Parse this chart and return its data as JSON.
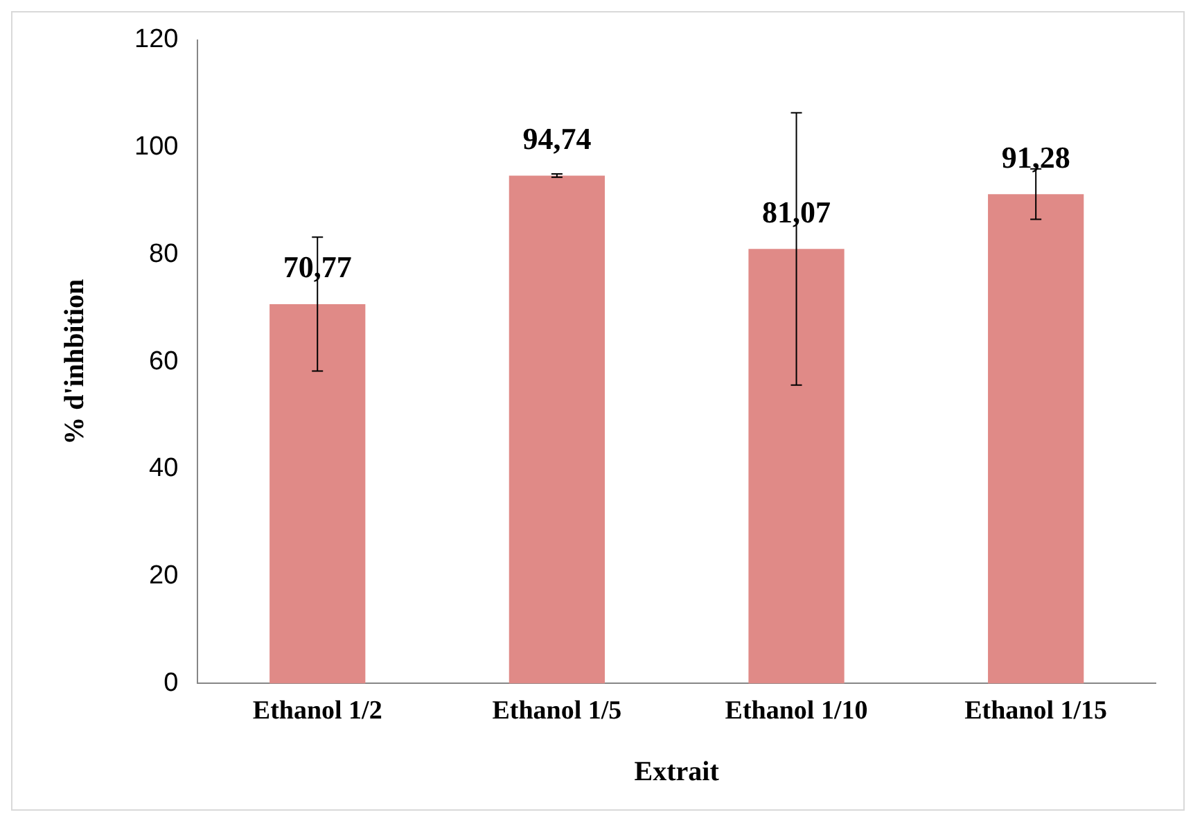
{
  "chart_data": {
    "type": "bar",
    "xlabel": "Extrait",
    "ylabel": "% d'inhbition",
    "categories": [
      "Ethanol 1/2",
      "Ethanol 1/5",
      "Ethanol 1/10",
      "Ethanol 1/15"
    ],
    "values": [
      70.77,
      94.74,
      81.07,
      91.28
    ],
    "value_labels": [
      "70,77",
      "94,74",
      "81,07",
      "91,28"
    ],
    "errors": [
      12.5,
      0.3,
      25.4,
      4.7
    ],
    "color": "#e08a87",
    "ylim": [
      0,
      120
    ],
    "yticks": [
      0,
      20,
      40,
      60,
      80,
      100,
      120
    ],
    "grid": false,
    "legend": false
  }
}
